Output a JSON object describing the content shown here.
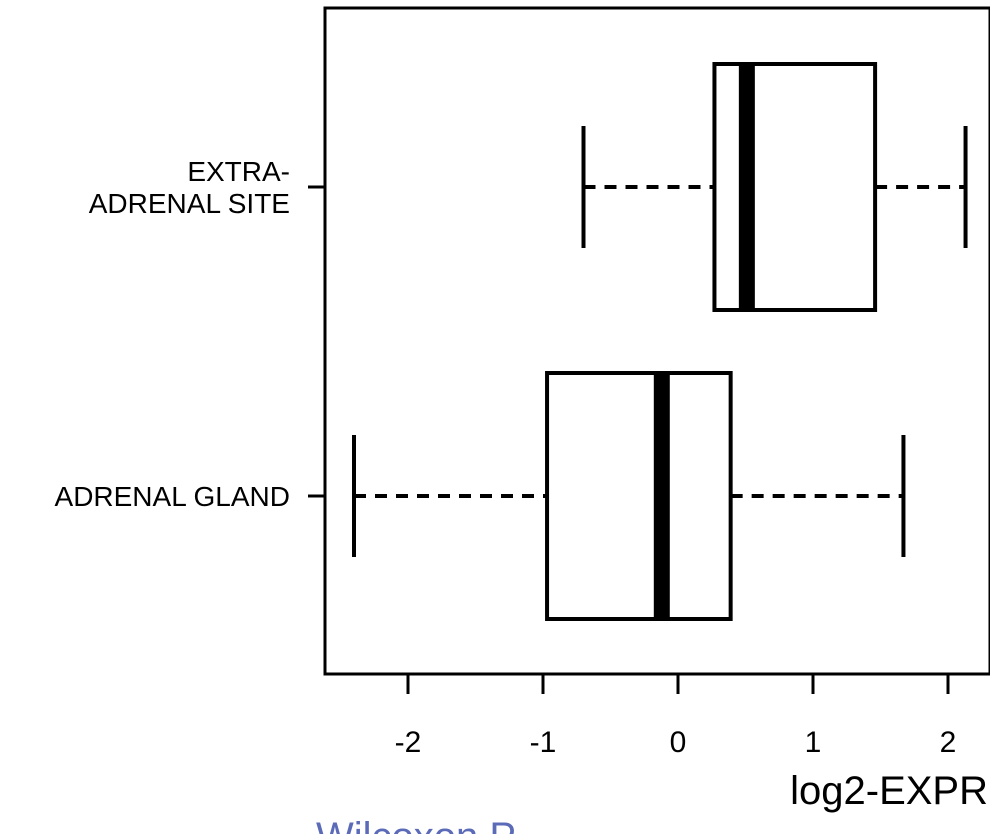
{
  "chart_data": {
    "type": "boxplot",
    "orientation": "horizontal",
    "title": "",
    "xlabel": "log2-EXPR",
    "ylabel": "",
    "xlim": [
      -2.6,
      2.35
    ],
    "x_ticks": [
      -2,
      -1,
      0,
      1,
      2
    ],
    "x_tick_labels": [
      "-2",
      "-1",
      "0",
      "1",
      "2"
    ],
    "grid": false,
    "categories": [
      "EXTRA-\nADRENAL SITE",
      "ADRENAL GLAND"
    ],
    "boxes": [
      {
        "category": "EXTRA-\nADRENAL SITE",
        "whisker_low": -0.7,
        "q1": 0.27,
        "median": 0.51,
        "q3": 1.46,
        "whisker_high": 2.13
      },
      {
        "category": "ADRENAL GLAND",
        "whisker_low": -2.4,
        "q1": -0.97,
        "median": -0.12,
        "q3": 0.39,
        "whisker_high": 1.67
      }
    ],
    "footer_text": "Wilcoxon P"
  }
}
